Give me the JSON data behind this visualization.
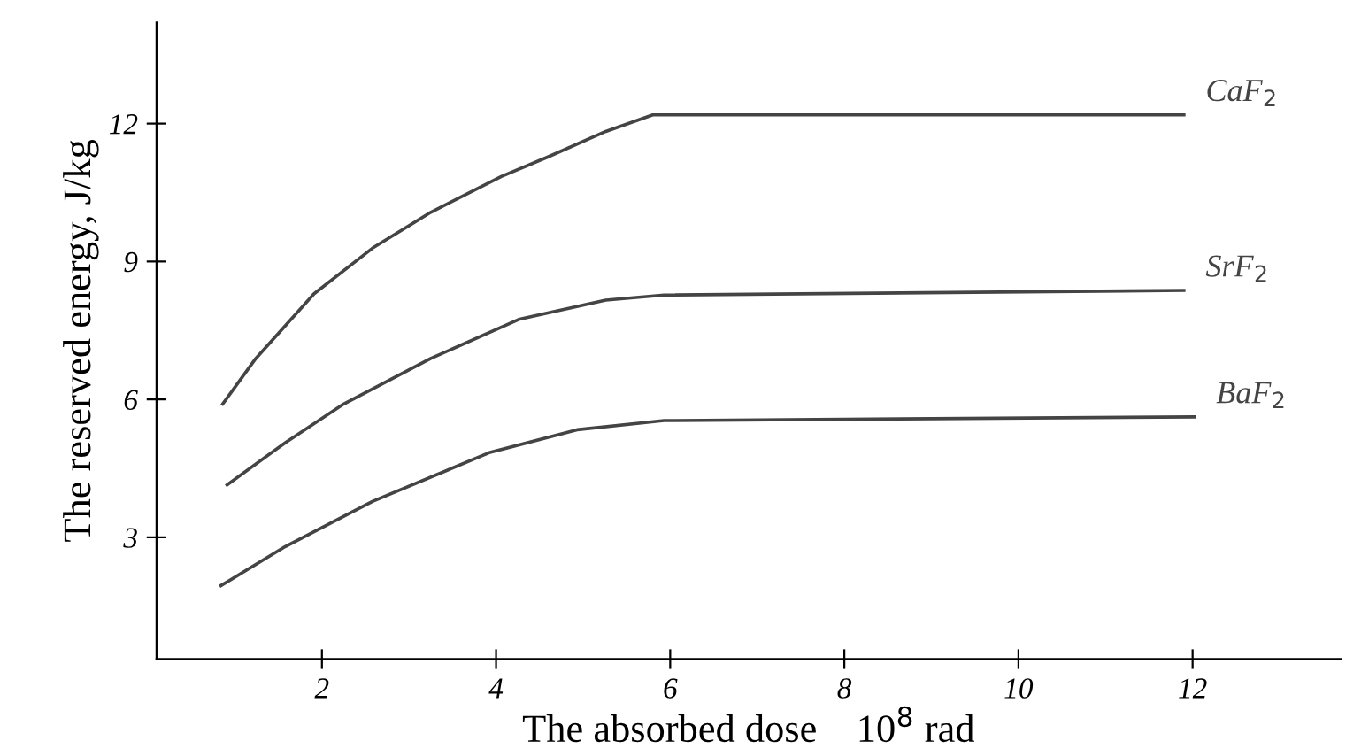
{
  "chart_data": {
    "type": "line",
    "xlabel": "The absorbed dose    10$^{8}$ rad",
    "ylabel": "The reserved energy, J/kg",
    "xlim": [
      0.1,
      13.7
    ],
    "ylim": [
      0.35,
      14.2
    ],
    "xticks": [
      2,
      4,
      6,
      8,
      10,
      12
    ],
    "yticks": [
      3,
      6,
      9,
      12
    ],
    "grid": false,
    "legend": false,
    "marker": "none",
    "line_style": "solid",
    "series": [
      {
        "name": "CaF$_{2}$",
        "color": "#444444",
        "x": [
          0.86,
          1.24,
          1.91,
          2.58,
          3.25,
          4.06,
          4.59,
          5.26,
          5.8,
          11.9
        ],
        "values": [
          5.9,
          6.89,
          8.3,
          9.29,
          10.07,
          10.85,
          11.27,
          11.83,
          12.19,
          12.19
        ]
      },
      {
        "name": "SrF$_{2}$",
        "color": "#444444",
        "x": [
          0.91,
          1.58,
          2.25,
          3.25,
          4.26,
          5.26,
          5.93,
          11.9
        ],
        "values": [
          4.14,
          5.06,
          5.9,
          6.89,
          7.74,
          8.16,
          8.27,
          8.37
        ]
      },
      {
        "name": "BaF$_{2}$",
        "color": "#444444",
        "x": [
          0.84,
          1.58,
          2.58,
          3.92,
          4.93,
          5.93,
          12.02
        ],
        "values": [
          1.95,
          2.8,
          3.78,
          4.84,
          5.34,
          5.54,
          5.62
        ]
      }
    ]
  }
}
